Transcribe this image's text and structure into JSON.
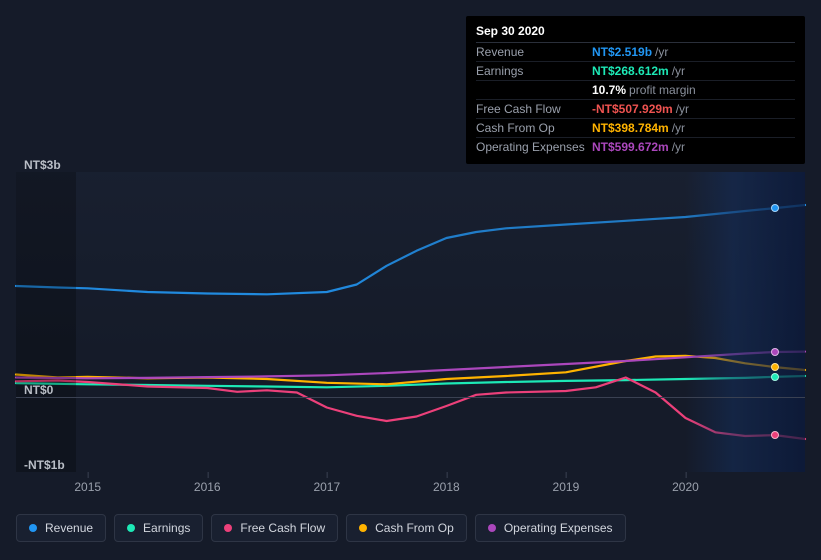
{
  "chart": {
    "type": "line",
    "background_color": "#151b29",
    "grid_color": "#3a4152",
    "text_color": "#b9bec6",
    "y": {
      "min": -1000000000,
      "max": 3000000000,
      "ticks": [
        {
          "v": 3000000000,
          "label": "NT$3b"
        },
        {
          "v": 0,
          "label": "NT$0"
        },
        {
          "v": -1000000000,
          "label": "-NT$1b"
        }
      ]
    },
    "x": {
      "min": 2014.4,
      "max": 2021.0,
      "ticks": [
        {
          "v": 2015,
          "label": "2015"
        },
        {
          "v": 2016,
          "label": "2016"
        },
        {
          "v": 2017,
          "label": "2017"
        },
        {
          "v": 2018,
          "label": "2018"
        },
        {
          "v": 2019,
          "label": "2019"
        },
        {
          "v": 2020,
          "label": "2020"
        }
      ]
    },
    "hover_x": 2020.75,
    "highlight_band": {
      "from": 2020.0,
      "to": 2021.0,
      "color_left": "#1a2438",
      "color_right": "#0f182e"
    },
    "dim_band": {
      "from": 2014.4,
      "to": 2014.9,
      "color": "rgba(0,0,0,0.25)"
    },
    "series": [
      {
        "key": "revenue",
        "label": "Revenue",
        "color": "#2196f3",
        "points": [
          [
            2014.4,
            1480
          ],
          [
            2014.75,
            1460
          ],
          [
            2015.0,
            1450
          ],
          [
            2015.5,
            1400
          ],
          [
            2016.0,
            1380
          ],
          [
            2016.5,
            1370
          ],
          [
            2017.0,
            1400
          ],
          [
            2017.25,
            1500
          ],
          [
            2017.5,
            1750
          ],
          [
            2017.75,
            1950
          ],
          [
            2018.0,
            2120
          ],
          [
            2018.25,
            2200
          ],
          [
            2018.5,
            2250
          ],
          [
            2019.0,
            2300
          ],
          [
            2019.5,
            2350
          ],
          [
            2020.0,
            2400
          ],
          [
            2020.5,
            2480
          ],
          [
            2020.75,
            2519
          ],
          [
            2021.0,
            2560
          ]
        ]
      },
      {
        "key": "earnings",
        "label": "Earnings",
        "color": "#1de9b6",
        "points": [
          [
            2014.4,
            185
          ],
          [
            2015.0,
            170
          ],
          [
            2015.5,
            160
          ],
          [
            2016.0,
            150
          ],
          [
            2016.5,
            140
          ],
          [
            2017.0,
            130
          ],
          [
            2017.5,
            150
          ],
          [
            2018.0,
            180
          ],
          [
            2018.5,
            200
          ],
          [
            2019.0,
            215
          ],
          [
            2019.5,
            225
          ],
          [
            2020.0,
            240
          ],
          [
            2020.5,
            255
          ],
          [
            2020.75,
            269
          ],
          [
            2021.0,
            280
          ]
        ]
      },
      {
        "key": "fcf",
        "label": "Free Cash Flow",
        "color": "#ec407a",
        "points": [
          [
            2014.4,
            210
          ],
          [
            2014.75,
            220
          ],
          [
            2015.0,
            200
          ],
          [
            2015.5,
            140
          ],
          [
            2016.0,
            120
          ],
          [
            2016.25,
            70
          ],
          [
            2016.5,
            90
          ],
          [
            2016.75,
            60
          ],
          [
            2017.0,
            -140
          ],
          [
            2017.25,
            -250
          ],
          [
            2017.5,
            -320
          ],
          [
            2017.75,
            -260
          ],
          [
            2018.0,
            -120
          ],
          [
            2018.25,
            30
          ],
          [
            2018.5,
            60
          ],
          [
            2019.0,
            80
          ],
          [
            2019.25,
            130
          ],
          [
            2019.5,
            260
          ],
          [
            2019.75,
            60
          ],
          [
            2020.0,
            -280
          ],
          [
            2020.25,
            -470
          ],
          [
            2020.5,
            -520
          ],
          [
            2020.75,
            -508
          ],
          [
            2021.0,
            -560
          ]
        ]
      },
      {
        "key": "cfo",
        "label": "Cash From Op",
        "color": "#ffb300",
        "points": [
          [
            2014.4,
            300
          ],
          [
            2014.75,
            260
          ],
          [
            2015.0,
            270
          ],
          [
            2015.5,
            250
          ],
          [
            2016.0,
            260
          ],
          [
            2016.5,
            240
          ],
          [
            2017.0,
            190
          ],
          [
            2017.5,
            170
          ],
          [
            2018.0,
            240
          ],
          [
            2018.5,
            280
          ],
          [
            2019.0,
            330
          ],
          [
            2019.5,
            480
          ],
          [
            2019.75,
            540
          ],
          [
            2020.0,
            550
          ],
          [
            2020.25,
            520
          ],
          [
            2020.5,
            450
          ],
          [
            2020.75,
            399
          ],
          [
            2021.0,
            360
          ]
        ]
      },
      {
        "key": "opex",
        "label": "Operating Expenses",
        "color": "#ab47bc",
        "points": [
          [
            2014.4,
            260
          ],
          [
            2015.0,
            250
          ],
          [
            2015.5,
            255
          ],
          [
            2016.0,
            265
          ],
          [
            2016.5,
            275
          ],
          [
            2017.0,
            290
          ],
          [
            2017.5,
            320
          ],
          [
            2018.0,
            360
          ],
          [
            2018.5,
            400
          ],
          [
            2019.0,
            440
          ],
          [
            2019.5,
            480
          ],
          [
            2020.0,
            530
          ],
          [
            2020.5,
            580
          ],
          [
            2020.75,
            600
          ],
          [
            2021.0,
            605
          ]
        ]
      }
    ]
  },
  "tooltip": {
    "date": "Sep 30 2020",
    "rows": [
      {
        "k": "Revenue",
        "v": "NT$2.519b",
        "color": "#2196f3",
        "suffix": "/yr"
      },
      {
        "k": "Earnings",
        "v": "NT$268.612m",
        "color": "#1de9b6",
        "suffix": "/yr"
      },
      {
        "k": "",
        "v": "10.7%",
        "color": "#ffffff",
        "suffix": "profit margin"
      },
      {
        "k": "Free Cash Flow",
        "v": "-NT$507.929m",
        "color": "#ef5350",
        "suffix": "/yr"
      },
      {
        "k": "Cash From Op",
        "v": "NT$398.784m",
        "color": "#ffb300",
        "suffix": "/yr"
      },
      {
        "k": "Operating Expenses",
        "v": "NT$599.672m",
        "color": "#ab47bc",
        "suffix": "/yr"
      }
    ]
  },
  "legend": {
    "items": [
      {
        "key": "revenue",
        "label": "Revenue",
        "color": "#2196f3"
      },
      {
        "key": "earnings",
        "label": "Earnings",
        "color": "#1de9b6"
      },
      {
        "key": "fcf",
        "label": "Free Cash Flow",
        "color": "#ec407a"
      },
      {
        "key": "cfo",
        "label": "Cash From Op",
        "color": "#ffb300"
      },
      {
        "key": "opex",
        "label": "Operating Expenses",
        "color": "#ab47bc"
      }
    ]
  }
}
